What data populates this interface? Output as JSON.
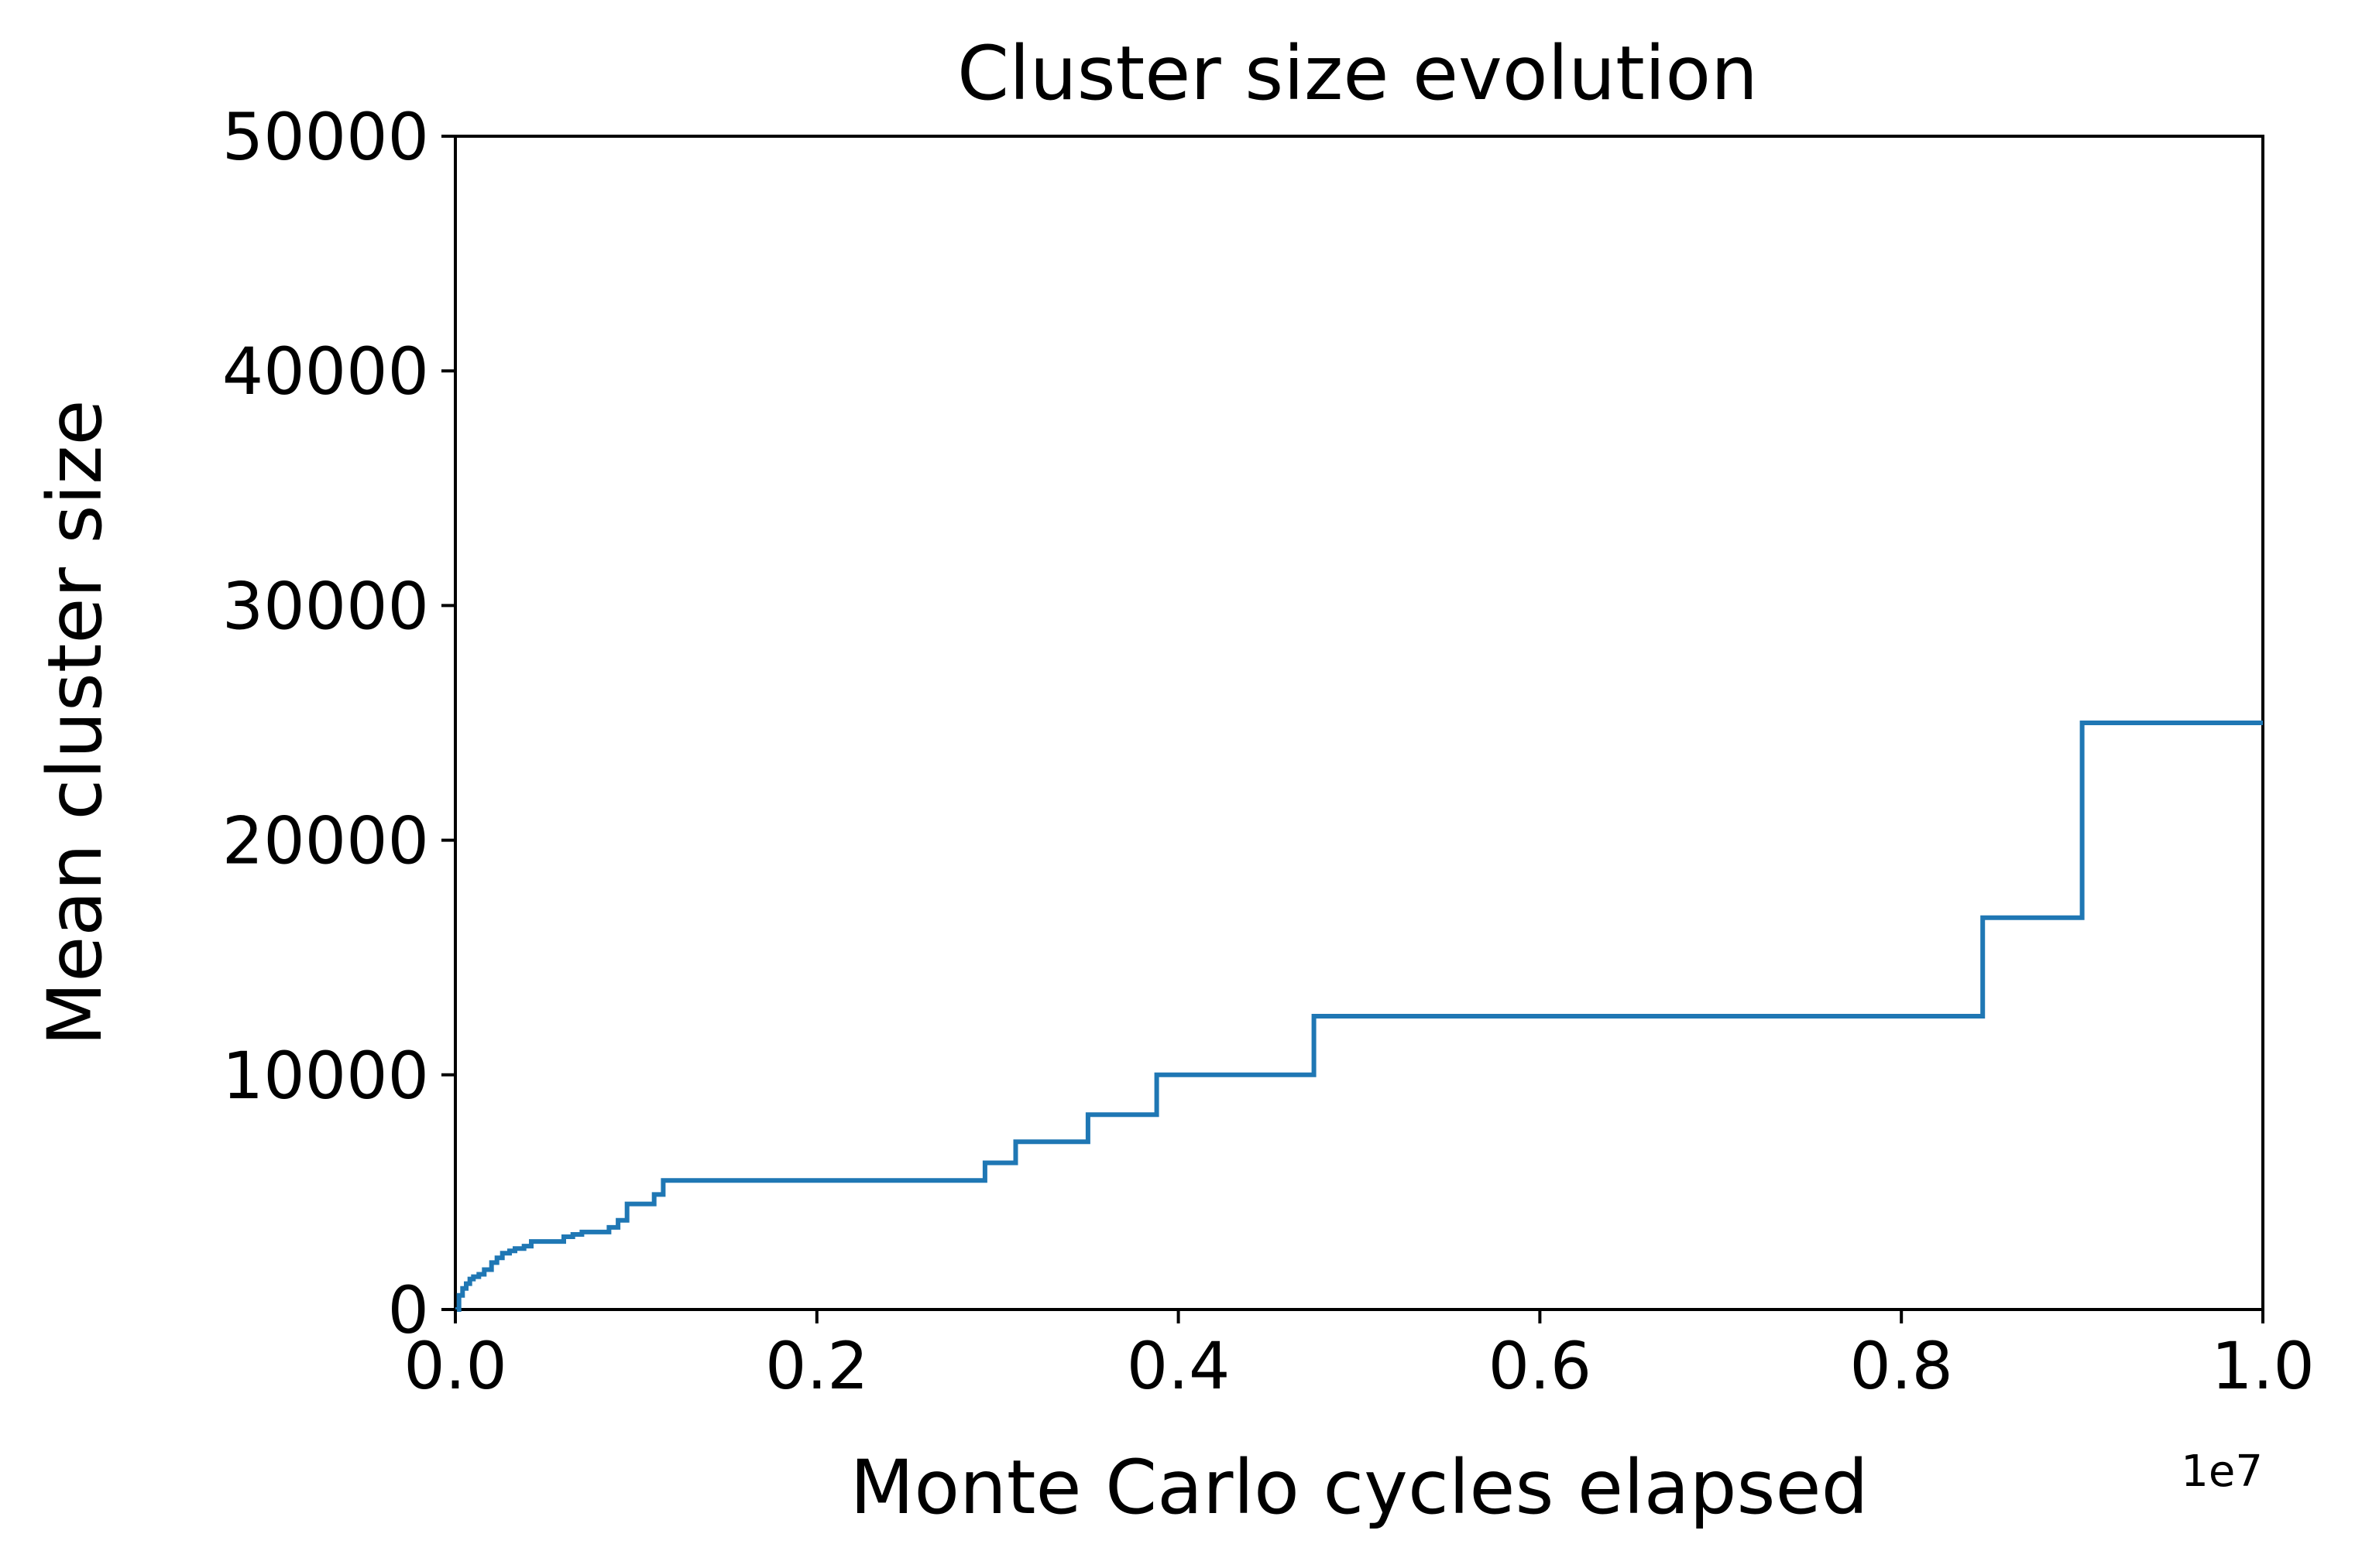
{
  "chart_data": {
    "type": "line",
    "title": "Cluster size evolution",
    "xlabel": "Monte Carlo cycles elapsed",
    "ylabel": "Mean cluster size",
    "x_offset_label": "1e7",
    "xlim": [
      0,
      10000000
    ],
    "ylim": [
      0,
      50000
    ],
    "x_ticks": [
      0,
      2000000,
      4000000,
      6000000,
      8000000,
      10000000
    ],
    "x_tick_labels": [
      "0.0",
      "0.2",
      "0.4",
      "0.6",
      "0.8",
      "1.0"
    ],
    "y_ticks": [
      0,
      10000,
      20000,
      30000,
      40000,
      50000
    ],
    "y_tick_labels": [
      "0",
      "10000",
      "20000",
      "30000",
      "40000",
      "50000"
    ],
    "grid": false,
    "series": [
      {
        "color": "#1f77b4",
        "step": true,
        "x": [
          0,
          20000,
          40000,
          60000,
          80000,
          100000,
          130000,
          160000,
          200000,
          230000,
          260000,
          300000,
          330000,
          380000,
          420000,
          600000,
          650000,
          700000,
          850000,
          900000,
          950000,
          1100000,
          1150000,
          2930000,
          3100000,
          3500000,
          3880000,
          4750000,
          8450000,
          9000000,
          10000000
        ],
        "y": [
          0,
          600,
          900,
          1100,
          1300,
          1400,
          1500,
          1700,
          2000,
          2200,
          2400,
          2500,
          2600,
          2700,
          2900,
          3100,
          3200,
          3300,
          3500,
          3800,
          4500,
          4900,
          5500,
          6250,
          7150,
          8300,
          10000,
          12500,
          16700,
          25000,
          25000
        ]
      }
    ]
  }
}
